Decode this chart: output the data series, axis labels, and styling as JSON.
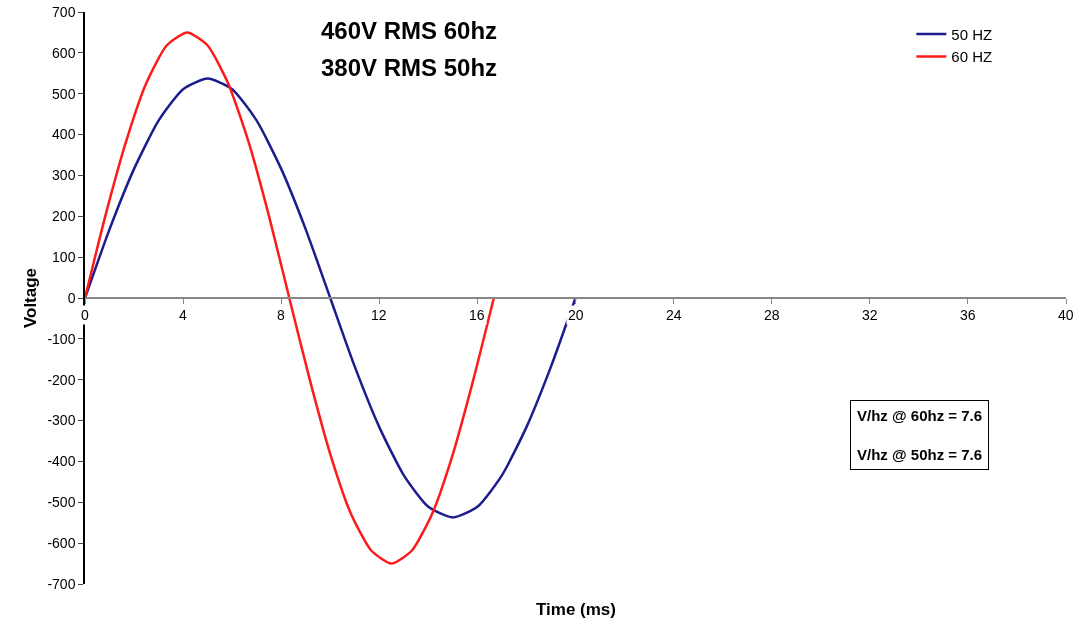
{
  "chart_data": {
    "type": "line",
    "title": "460V RMS 60hz",
    "subtitle": "380V RMS 50hz",
    "xlabel": "Time (ms)",
    "ylabel": "Voltage",
    "series": [
      {
        "name": "50 HZ",
        "color": "#1c1c8c",
        "x": [
          0,
          1,
          2,
          3,
          4,
          5,
          6,
          7,
          8,
          9,
          10,
          11,
          12,
          13,
          14,
          15,
          16,
          17,
          18,
          19,
          20
        ],
        "values": [
          0,
          168,
          316,
          434,
          511,
          537,
          511,
          434,
          316,
          168,
          0,
          -168,
          -316,
          -434,
          -511,
          -537,
          -511,
          -434,
          -316,
          -168,
          0
        ]
      },
      {
        "name": "60 HZ",
        "color": "#ff1a1a",
        "x": [
          0,
          0.83,
          1.67,
          2.5,
          3.33,
          4.17,
          5,
          5.83,
          6.67,
          7.5,
          8.33,
          9.17,
          10,
          10.83,
          11.67,
          12.5,
          13.33,
          14.17,
          15,
          15.83,
          16.67
        ],
        "values": [
          0,
          201,
          382,
          526,
          618,
          650,
          618,
          526,
          382,
          201,
          0,
          -201,
          -382,
          -526,
          -618,
          -650,
          -618,
          -526,
          -382,
          -201,
          0
        ]
      }
    ],
    "xlim": [
      0,
      40
    ],
    "xticks": [
      0,
      4,
      8,
      12,
      16,
      20,
      24,
      28,
      32,
      36,
      40
    ],
    "ylim": [
      -700,
      700
    ],
    "yticks": [
      -700,
      -600,
      -500,
      -400,
      -300,
      -200,
      -100,
      0,
      100,
      200,
      300,
      400,
      500,
      600,
      700
    ],
    "grid": false,
    "legend": "top right",
    "marker": "none",
    "line_style": "solid",
    "annotations": [
      "V/hz @ 60hz = 7.6",
      "V/hz @ 50hz = 7.6"
    ]
  }
}
